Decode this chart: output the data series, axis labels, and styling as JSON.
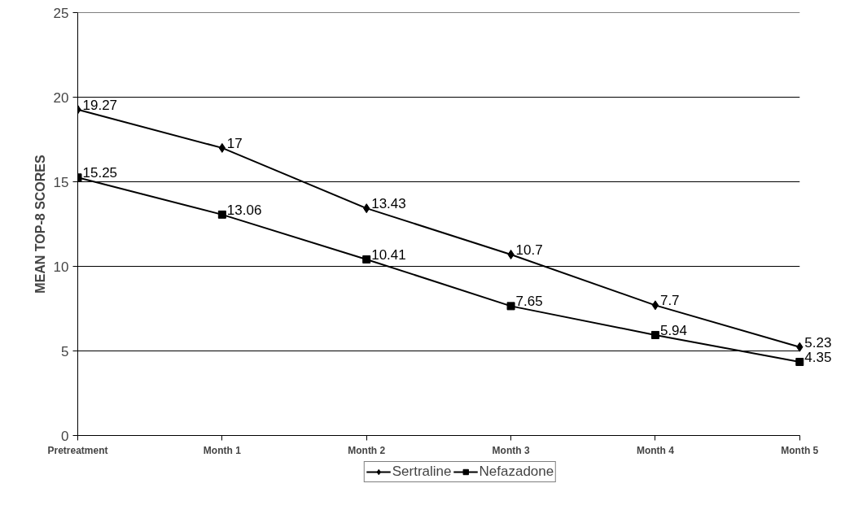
{
  "chart_data": {
    "type": "line",
    "ylabel": "MEAN TOP-8 SCORES",
    "categories": [
      "Pretreatment",
      "Month 1",
      "Month 2",
      "Month 3",
      "Month 4",
      "Month 5"
    ],
    "series": [
      {
        "name": "Sertraline",
        "color": "#000000",
        "marker": "diamond",
        "values": [
          19.27,
          17,
          13.43,
          10.7,
          7.7,
          5.23
        ]
      },
      {
        "name": "Nefazadone",
        "color": "#000000",
        "marker": "square",
        "values": [
          15.25,
          13.06,
          10.41,
          7.65,
          5.94,
          4.35
        ]
      }
    ],
    "ylim": [
      0,
      25
    ],
    "yticks": [
      0,
      5,
      10,
      15,
      20,
      25
    ],
    "grid": "y",
    "legend": "bottom",
    "data_labels": true
  }
}
